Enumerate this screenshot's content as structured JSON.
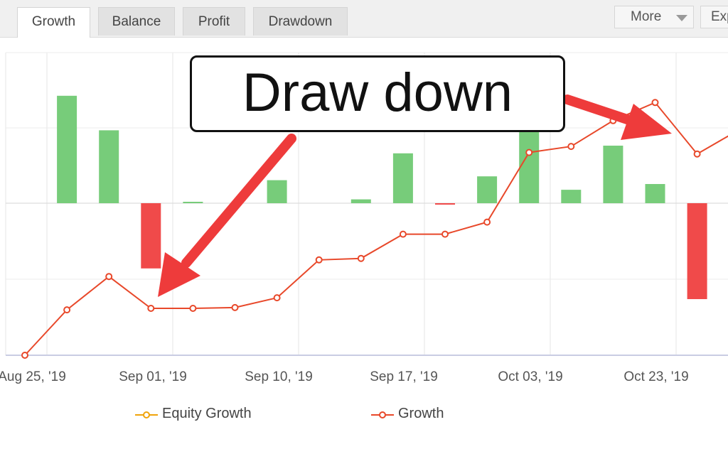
{
  "tabs": [
    {
      "label": "Growth",
      "active": true
    },
    {
      "label": "Balance",
      "active": false
    },
    {
      "label": "Profit",
      "active": false
    },
    {
      "label": "Drawdown",
      "active": false
    }
  ],
  "toolbar": {
    "more_label": "More",
    "export_label": "Exp"
  },
  "annotation": {
    "label": "Draw down"
  },
  "legend": [
    {
      "label": "Equity Growth",
      "color": "#f0a30a"
    },
    {
      "label": "Growth",
      "color": "#e8482a"
    }
  ],
  "colors": {
    "positive_bar": "#77cc7a",
    "negative_bar": "#f04a4a",
    "line": "#e8482a",
    "arrow": "#ee3b3b"
  },
  "chart_data": {
    "type": "bar+line",
    "x_tick_labels": [
      "Aug 25, '19",
      "Sep 01, '19",
      "Sep 10, '19",
      "Sep 17, '19",
      "Oct 03, '19",
      "Oct 23, '19"
    ],
    "grid": true,
    "y_axis_labels_visible": false,
    "series": [
      {
        "name": "Growth",
        "type": "bar",
        "values": [
          null,
          2.8,
          1.9,
          -1.7,
          0.03,
          null,
          0.6,
          null,
          0.1,
          1.3,
          -0.03,
          0.7,
          1.9,
          0.35,
          1.5,
          0.5,
          -2.5,
          null
        ],
        "note": "relative daily growth; bars behind the annotation box are hidden"
      },
      {
        "name": "Growth",
        "type": "line",
        "values": [
          0,
          3.0,
          5.2,
          3.1,
          3.1,
          3.15,
          3.8,
          6.3,
          6.4,
          8.0,
          8.0,
          8.8,
          13.4,
          13.8,
          15.5,
          16.7,
          13.3,
          14.9
        ]
      }
    ]
  }
}
